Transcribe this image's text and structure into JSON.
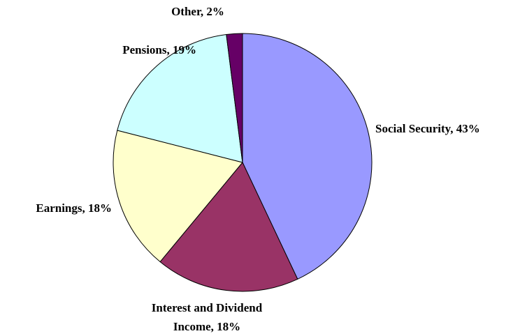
{
  "chart_data": {
    "type": "pie",
    "values": [
      43,
      18,
      18,
      19,
      2
    ],
    "value_labels": [
      [
        "Social Security, 43%"
      ],
      [
        "Interest and Dividend",
        "Income, 18%"
      ],
      [
        "Earnings, 18%"
      ],
      [
        "Pensions, 19%"
      ],
      [
        "Other, 2%"
      ]
    ],
    "colors": [
      "#9999ff",
      "#993366",
      "#ffffcc",
      "#ccffff",
      "#660066"
    ]
  }
}
